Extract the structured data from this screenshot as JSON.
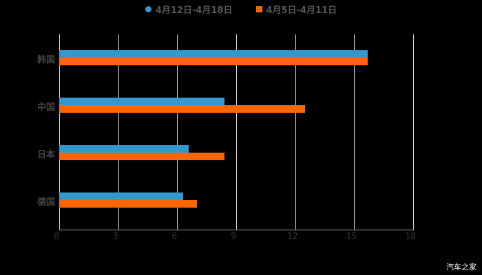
{
  "chart_data": {
    "type": "bar",
    "orientation": "horizontal",
    "categories": [
      "韩国",
      "中国",
      "日本",
      "德国"
    ],
    "series": [
      {
        "name": "4月12日-4月18日",
        "color": "#3399cc",
        "values": [
          15.7,
          8.4,
          6.6,
          6.3
        ]
      },
      {
        "name": "4月5日-4月11日",
        "color": "#ff6600",
        "values": [
          15.7,
          12.5,
          8.4,
          7.0
        ]
      }
    ],
    "xlim": [
      0,
      18
    ],
    "xticks": [
      "0",
      "3",
      "6",
      "9",
      "12",
      "15",
      "18"
    ],
    "grid": true,
    "legend_position": "top"
  },
  "watermark": "汽车之家"
}
